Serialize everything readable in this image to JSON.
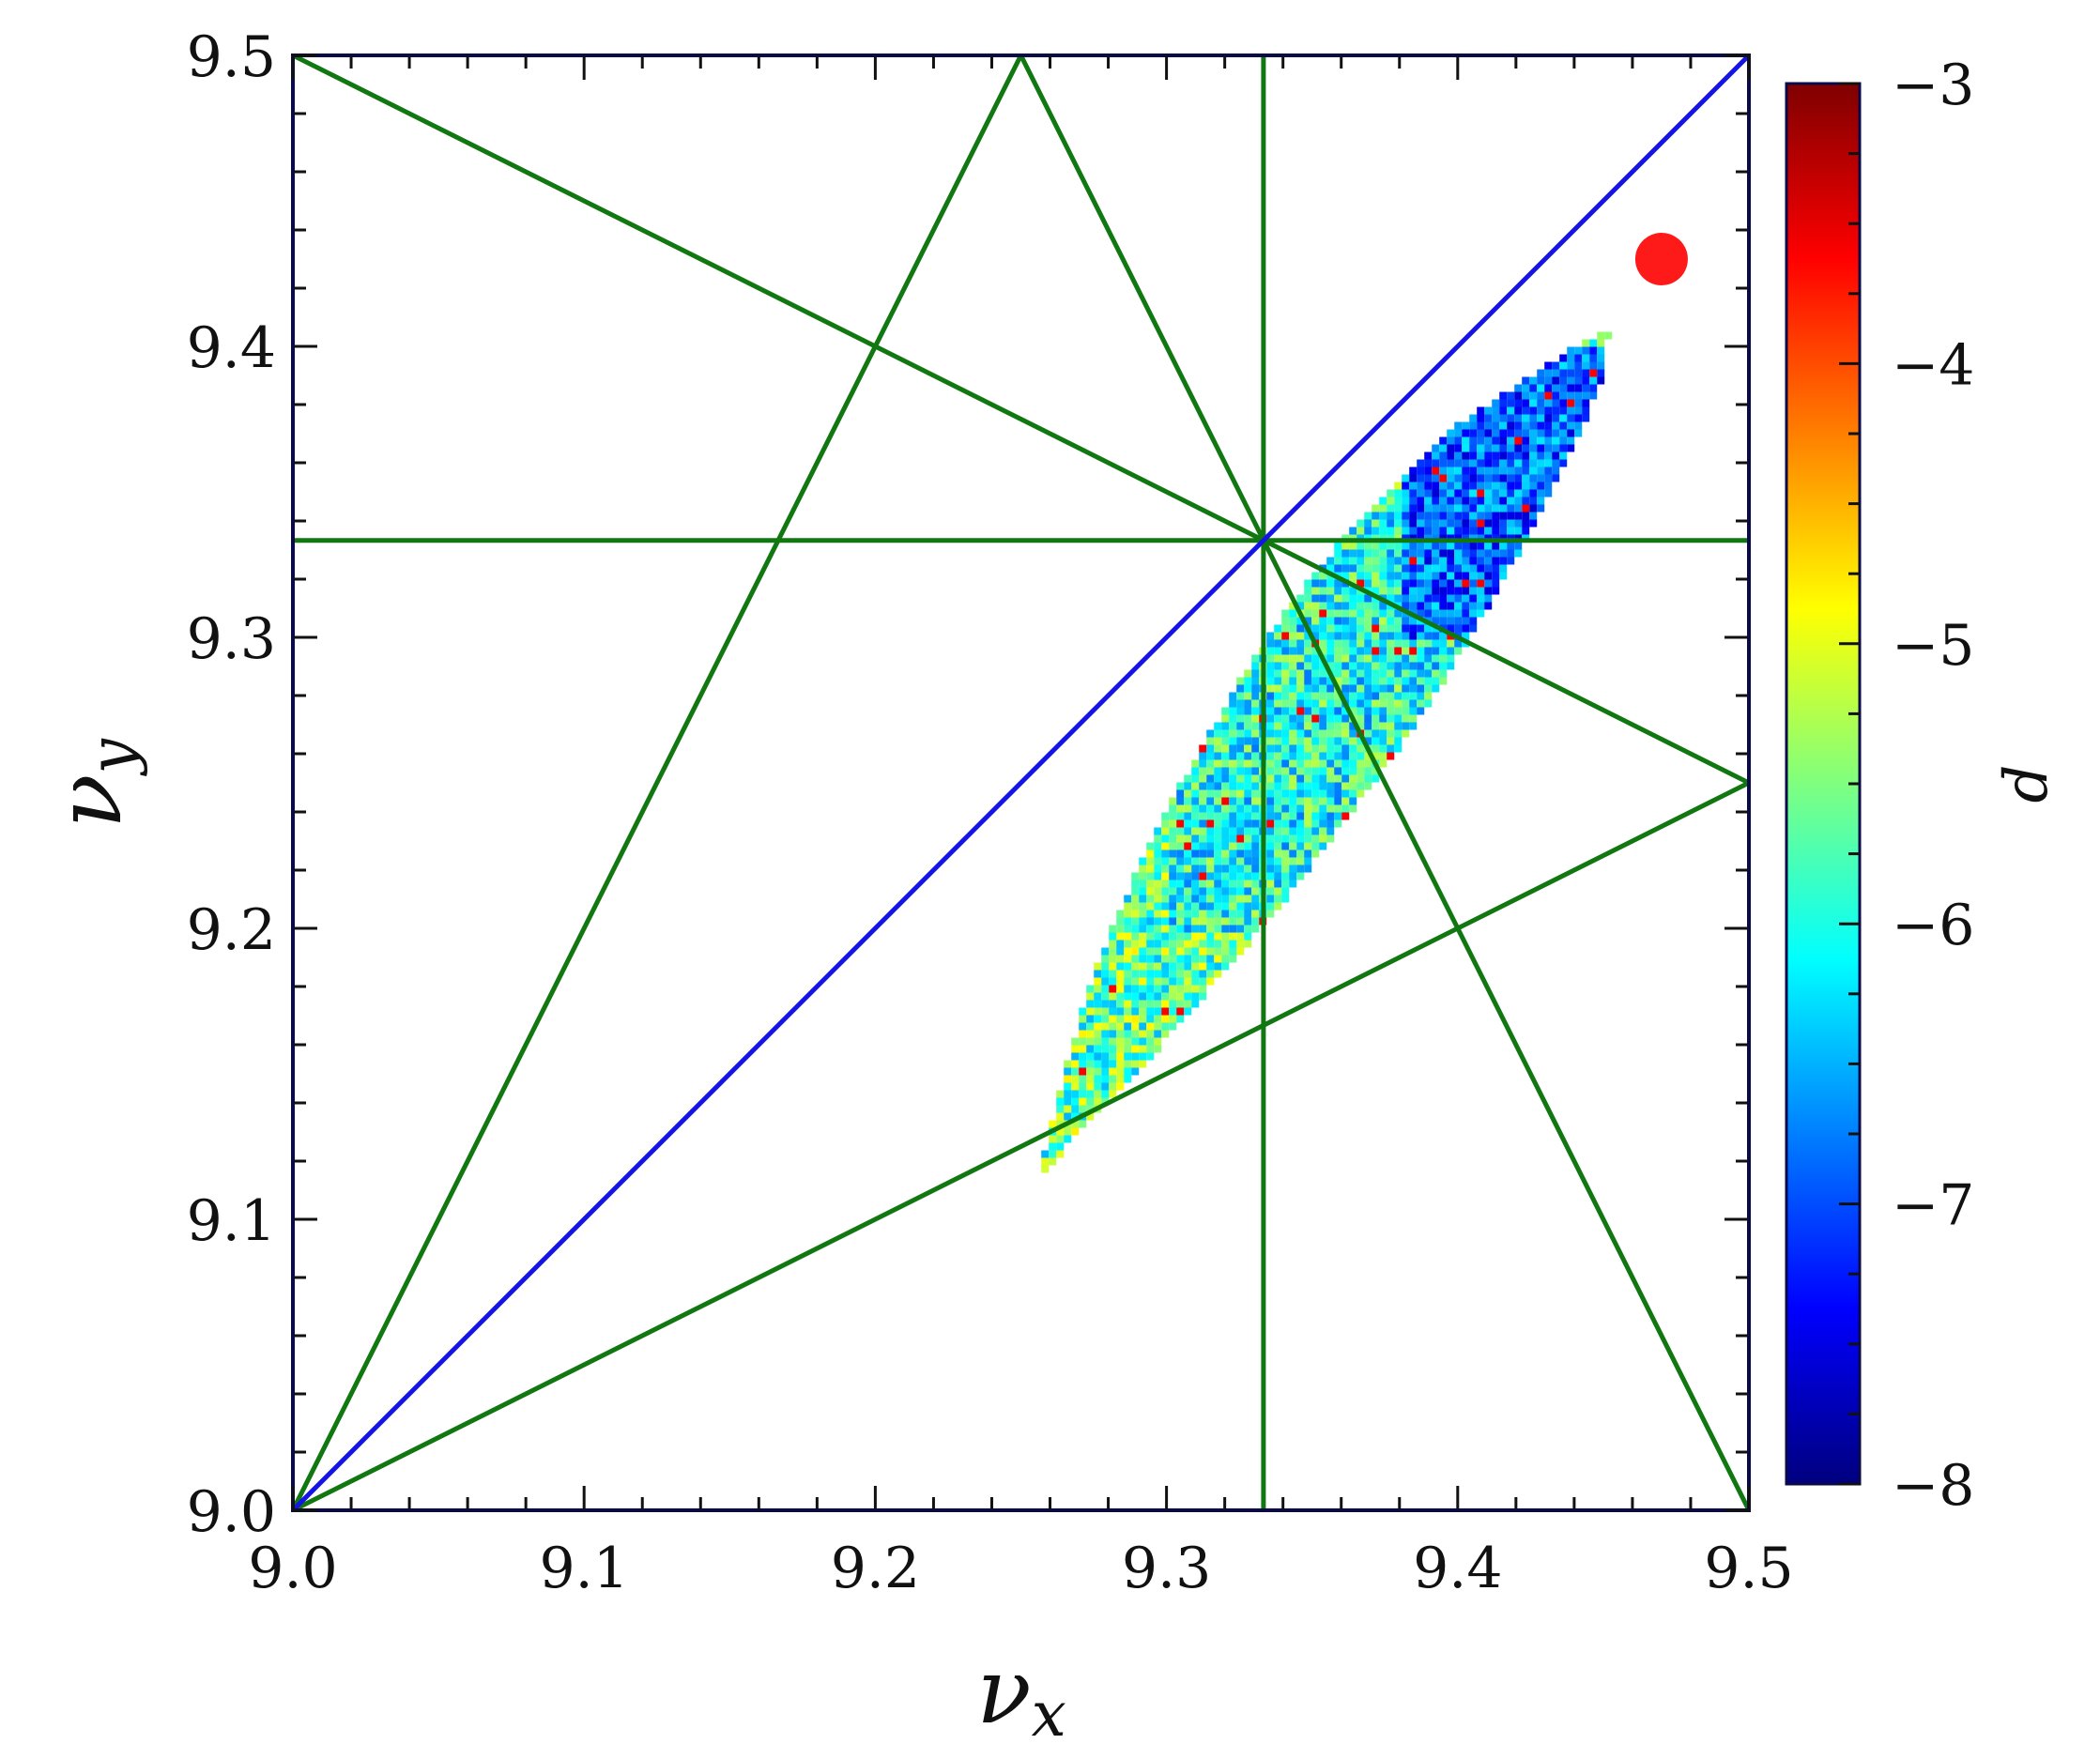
{
  "chart_data": {
    "type": "scatter",
    "title": "",
    "xlabel": "ν",
    "xlabel_sub": "x",
    "ylabel": "ν",
    "ylabel_sub": "y",
    "xlim": [
      9.0,
      9.5
    ],
    "ylim": [
      9.0,
      9.5
    ],
    "xticks": [
      "9.0",
      "9.1",
      "9.2",
      "9.3",
      "9.4",
      "9.5"
    ],
    "yticks": [
      "9.0",
      "9.1",
      "9.2",
      "9.3",
      "9.4",
      "9.5"
    ],
    "grid": false,
    "working_point": {
      "x": 9.47,
      "y": 9.43,
      "color": "#ff1a1a"
    },
    "diagonal": {
      "x": [
        9.0,
        9.5
      ],
      "y": [
        9.0,
        9.5
      ],
      "color": "#1414e6"
    },
    "resonance_lines": {
      "color": "#117711",
      "segments": [
        {
          "x": [
            9.0,
            9.25
          ],
          "y": [
            9.0,
            9.5
          ]
        },
        {
          "x": [
            9.25,
            9.5
          ],
          "y": [
            9.5,
            9.0
          ]
        },
        {
          "x": [
            9.0,
            9.5
          ],
          "y": [
            9.0,
            9.25
          ]
        },
        {
          "x": [
            9.0,
            9.5
          ],
          "y": [
            9.5,
            9.25
          ]
        },
        {
          "x": [
            9.3333,
            9.3333
          ],
          "y": [
            9.0,
            9.5
          ]
        },
        {
          "x": [
            9.0,
            9.5
          ],
          "y": [
            9.3333,
            9.3333
          ]
        }
      ]
    },
    "footprint": {
      "description_points": "diffusion map footprint",
      "outline": [
        [
          9.258,
          9.115
        ],
        [
          9.266,
          9.125
        ],
        [
          9.29,
          9.15
        ],
        [
          9.32,
          9.185
        ],
        [
          9.345,
          9.215
        ],
        [
          9.375,
          9.255
        ],
        [
          9.395,
          9.285
        ],
        [
          9.415,
          9.318
        ],
        [
          9.43,
          9.345
        ],
        [
          9.442,
          9.37
        ],
        [
          9.45,
          9.39
        ],
        [
          9.452,
          9.405
        ],
        [
          9.445,
          9.403
        ],
        [
          9.425,
          9.39
        ],
        [
          9.4,
          9.373
        ],
        [
          9.38,
          9.355
        ],
        [
          9.36,
          9.333
        ],
        [
          9.343,
          9.312
        ],
        [
          9.325,
          9.285
        ],
        [
          9.305,
          9.25
        ],
        [
          9.29,
          9.22
        ],
        [
          9.275,
          9.185
        ],
        [
          9.265,
          9.15
        ],
        [
          9.257,
          9.12
        ]
      ],
      "regions": [
        {
          "x": [
            9.26,
            9.34
          ],
          "y": [
            9.12,
            9.27
          ],
          "d_range": [
            -6.5,
            -4.8
          ]
        },
        {
          "x": [
            9.3,
            9.4
          ],
          "y": [
            9.2,
            9.35
          ],
          "d_range": [
            -6.8,
            -5.2
          ]
        },
        {
          "x": [
            9.38,
            9.45
          ],
          "y": [
            9.3,
            9.4
          ],
          "d_range": [
            -7.6,
            -6.2
          ]
        }
      ]
    },
    "colorbar": {
      "label": "d",
      "min": -8,
      "max": -3,
      "ticks": [
        "−3",
        "−4",
        "−5",
        "−6",
        "−7",
        "−8"
      ],
      "colormap": [
        "#00007f",
        "#0000ff",
        "#007fff",
        "#00ffff",
        "#7fff7f",
        "#ffff00",
        "#ff7f00",
        "#ff0000",
        "#7f0000"
      ]
    }
  }
}
